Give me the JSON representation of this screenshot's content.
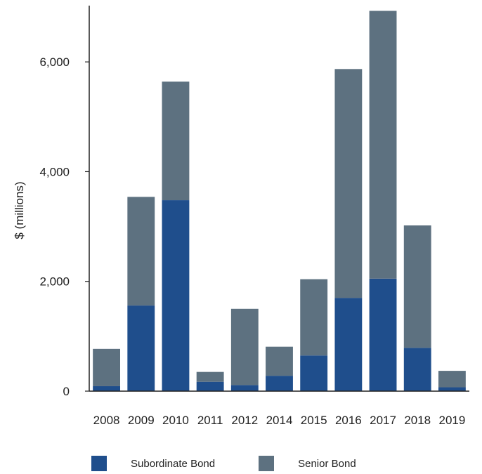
{
  "chart_data": {
    "type": "bar",
    "stacked": true,
    "categories": [
      "2008",
      "2009",
      "2010",
      "2011",
      "2012",
      "2014",
      "2015",
      "2016",
      "2017",
      "2018",
      "2019"
    ],
    "series": [
      {
        "name": "Subordinate Bond",
        "color": "#1f4e8c",
        "values": [
          90,
          1560,
          3480,
          170,
          110,
          280,
          650,
          1700,
          2050,
          790,
          70
        ]
      },
      {
        "name": "Senior Bond",
        "color": "#5d7180",
        "values": [
          680,
          1980,
          2160,
          180,
          1390,
          530,
          1390,
          4170,
          4880,
          2230,
          300
        ]
      }
    ],
    "ylabel": "$ (millions)",
    "xlabel": "",
    "ylim": [
      0,
      7000
    ],
    "yticks": [
      0,
      2000,
      4000,
      6000
    ],
    "ytick_labels": [
      "0",
      "2,000",
      "4,000",
      "6,000"
    ],
    "grid": false,
    "legend_position": "bottom"
  }
}
